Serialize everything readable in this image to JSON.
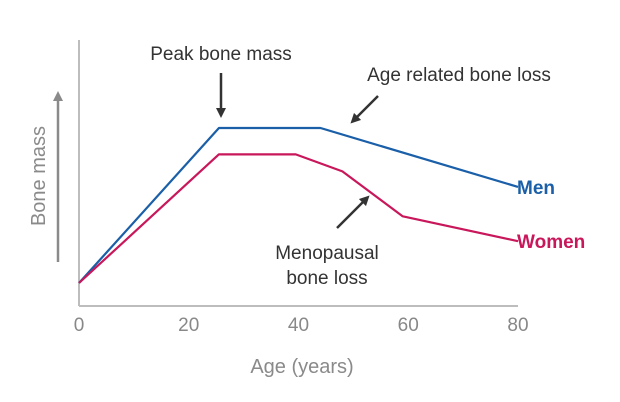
{
  "chart_data": {
    "type": "line",
    "title": "",
    "xlabel": "Age (years)",
    "ylabel": "Bone mass",
    "xlim": [
      0,
      80
    ],
    "ylim": [
      0,
      100
    ],
    "xticks": [
      "0",
      "20",
      "40",
      "60",
      "80"
    ],
    "grid": false,
    "series": [
      {
        "name": "Men",
        "color": "#1a5fa8",
        "points": [
          [
            0,
            0
          ],
          [
            25.5,
            100
          ],
          [
            44,
            100
          ],
          [
            80,
            62
          ]
        ]
      },
      {
        "name": "Women",
        "color": "#c8175a",
        "points": [
          [
            0,
            0
          ],
          [
            25.5,
            83
          ],
          [
            39.5,
            83
          ],
          [
            48,
            72
          ],
          [
            59,
            43
          ],
          [
            80,
            27
          ]
        ]
      }
    ],
    "annotations": [
      {
        "text": "Peak bone mass",
        "position": "above peak",
        "arrow": "down"
      },
      {
        "text": "Age related bone loss",
        "position": "upper right",
        "arrow": "down-left"
      },
      {
        "text": "Menopausal bone loss",
        "lines": [
          "Menopausal",
          "bone loss"
        ],
        "position": "below women decline",
        "arrow": "up-right"
      }
    ]
  }
}
